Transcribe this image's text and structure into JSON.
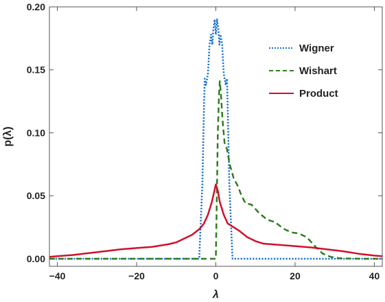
{
  "chart_data": {
    "type": "line",
    "xlabel": "λ",
    "ylabel": "p(λ)",
    "xlim": [
      -42,
      42
    ],
    "ylim": [
      -0.006,
      0.2
    ],
    "xticks": [
      -40,
      -20,
      0,
      20,
      40
    ],
    "xtick_labels": [
      "−40",
      "−20",
      "0",
      "20",
      "40"
    ],
    "yticks": [
      0.0,
      0.05,
      0.1,
      0.15,
      0.2
    ],
    "ytick_labels": [
      "0.00",
      "0.05",
      "0.10",
      "0.15",
      "0.20"
    ],
    "frame": true,
    "legend_position": "top-right",
    "series": [
      {
        "name": "Wigner",
        "color": "#1a6fd6",
        "style": "dotted",
        "x": [
          -42,
          -4.2,
          -3.4,
          -3.0,
          -2.8,
          -2.5,
          -2.0,
          -1.6,
          -1.2,
          -0.9,
          -0.6,
          -0.3,
          0.0,
          0.3,
          0.6,
          0.9,
          1.2,
          1.6,
          2.0,
          2.5,
          2.8,
          3.0,
          3.4,
          4.2,
          42
        ],
        "y": [
          0.0,
          0.0,
          0.06,
          0.12,
          0.143,
          0.138,
          0.147,
          0.17,
          0.178,
          0.17,
          0.183,
          0.19,
          0.178,
          0.19,
          0.183,
          0.17,
          0.178,
          0.17,
          0.147,
          0.138,
          0.143,
          0.12,
          0.06,
          0.0,
          0.0
        ]
      },
      {
        "name": "Wishart",
        "color": "#2e7d1e",
        "style": "dashed",
        "x": [
          -42,
          -0.1,
          0.0,
          0.2,
          0.5,
          0.8,
          1.0,
          1.3,
          1.7,
          2.2,
          2.8,
          3.5,
          4.5,
          5.5,
          6.5,
          7.5,
          9,
          11,
          13,
          15,
          17,
          19,
          21,
          23,
          25,
          27,
          29,
          31,
          33,
          35,
          37,
          39,
          42
        ],
        "y": [
          0.0,
          0.0,
          0.0,
          0.04,
          0.1,
          0.13,
          0.141,
          0.13,
          0.11,
          0.092,
          0.087,
          0.075,
          0.064,
          0.058,
          0.05,
          0.044,
          0.043,
          0.036,
          0.031,
          0.029,
          0.024,
          0.021,
          0.02,
          0.017,
          0.01,
          0.004,
          0.0015,
          0.0005,
          0.0002,
          0.0001,
          0.0,
          0.0,
          0.0
        ]
      },
      {
        "name": "Product",
        "color": "#d0102a",
        "style": "solid",
        "x": [
          -42,
          -40,
          -36,
          -32,
          -28,
          -24,
          -20,
          -16,
          -12,
          -10,
          -8,
          -6,
          -4,
          -3,
          -2,
          -1,
          -0.5,
          0,
          0.5,
          1,
          2,
          3,
          4,
          6,
          8,
          10,
          12,
          16,
          20,
          24,
          28,
          32,
          36,
          40,
          42
        ],
        "y": [
          0.0015,
          0.002,
          0.003,
          0.0045,
          0.006,
          0.0075,
          0.0085,
          0.0095,
          0.0115,
          0.013,
          0.016,
          0.019,
          0.024,
          0.028,
          0.035,
          0.045,
          0.052,
          0.059,
          0.054,
          0.045,
          0.035,
          0.028,
          0.026,
          0.022,
          0.017,
          0.014,
          0.012,
          0.011,
          0.01,
          0.009,
          0.0075,
          0.006,
          0.004,
          0.0025,
          0.002
        ]
      }
    ]
  }
}
